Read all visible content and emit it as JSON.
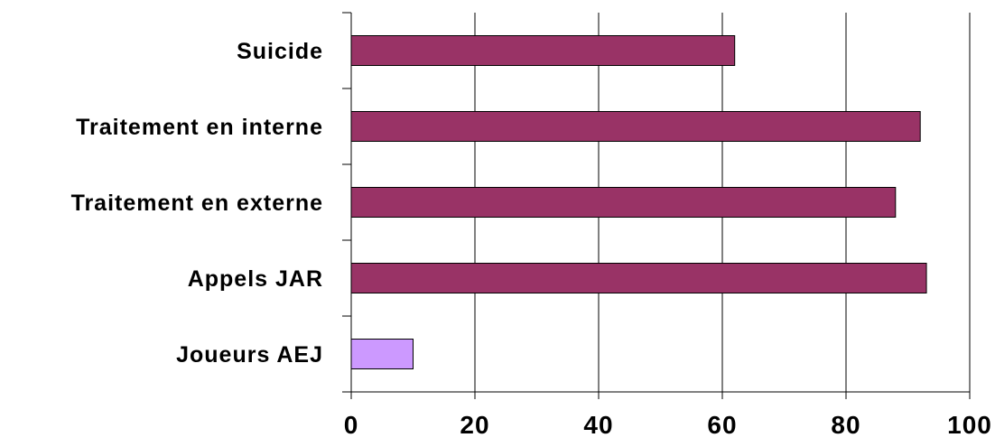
{
  "chart_data": {
    "type": "bar",
    "orientation": "horizontal",
    "categories": [
      "Suicide",
      "Traitement en interne",
      "Traitement en externe",
      "Appels JAR",
      "Joueurs AEJ"
    ],
    "values": [
      62,
      92,
      88,
      93,
      10
    ],
    "bar_colors": [
      "#993366",
      "#993366",
      "#993366",
      "#993366",
      "#CC99FF"
    ],
    "x_ticks": [
      "0",
      "20",
      "40",
      "60",
      "80",
      "100"
    ],
    "xlim": [
      0,
      100
    ],
    "grid": "vertical",
    "legend": "none"
  }
}
